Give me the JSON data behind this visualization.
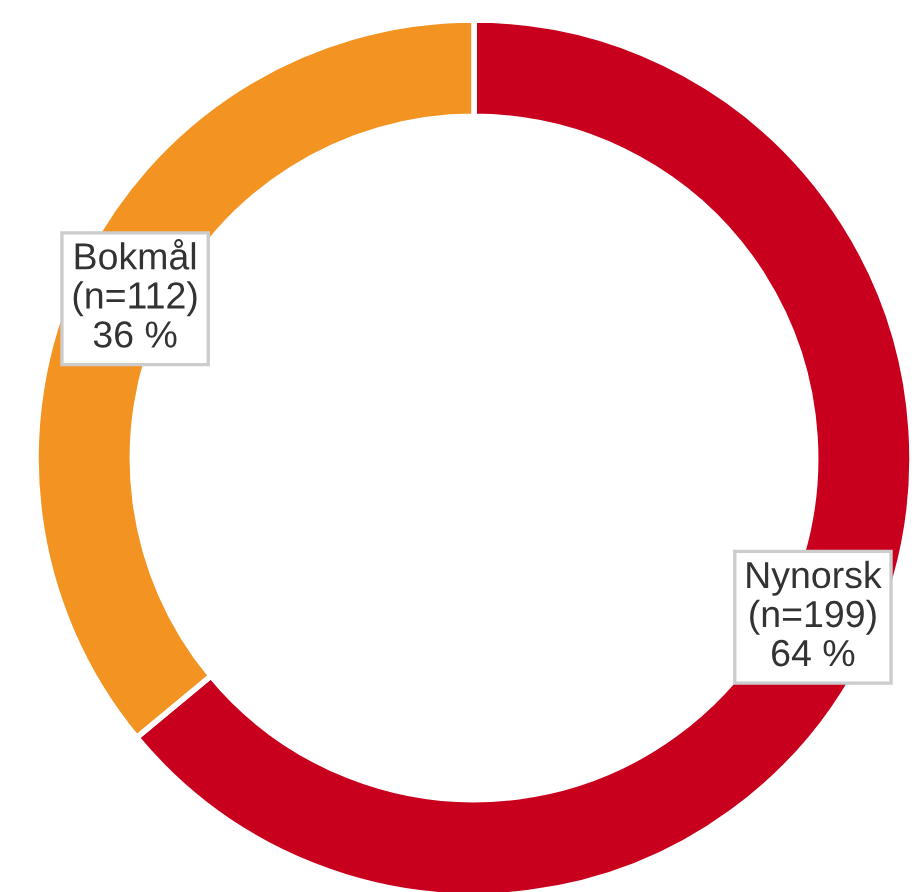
{
  "chart_data": {
    "type": "donut",
    "categories": [
      "Nynorsk",
      "Bokmål"
    ],
    "values": [
      199,
      112
    ],
    "value_labels": [
      "(n=199)\n64 %",
      "(n=112)\n36 %"
    ],
    "colors": [
      "#c8001e",
      "#f39322"
    ],
    "legend": false
  }
}
